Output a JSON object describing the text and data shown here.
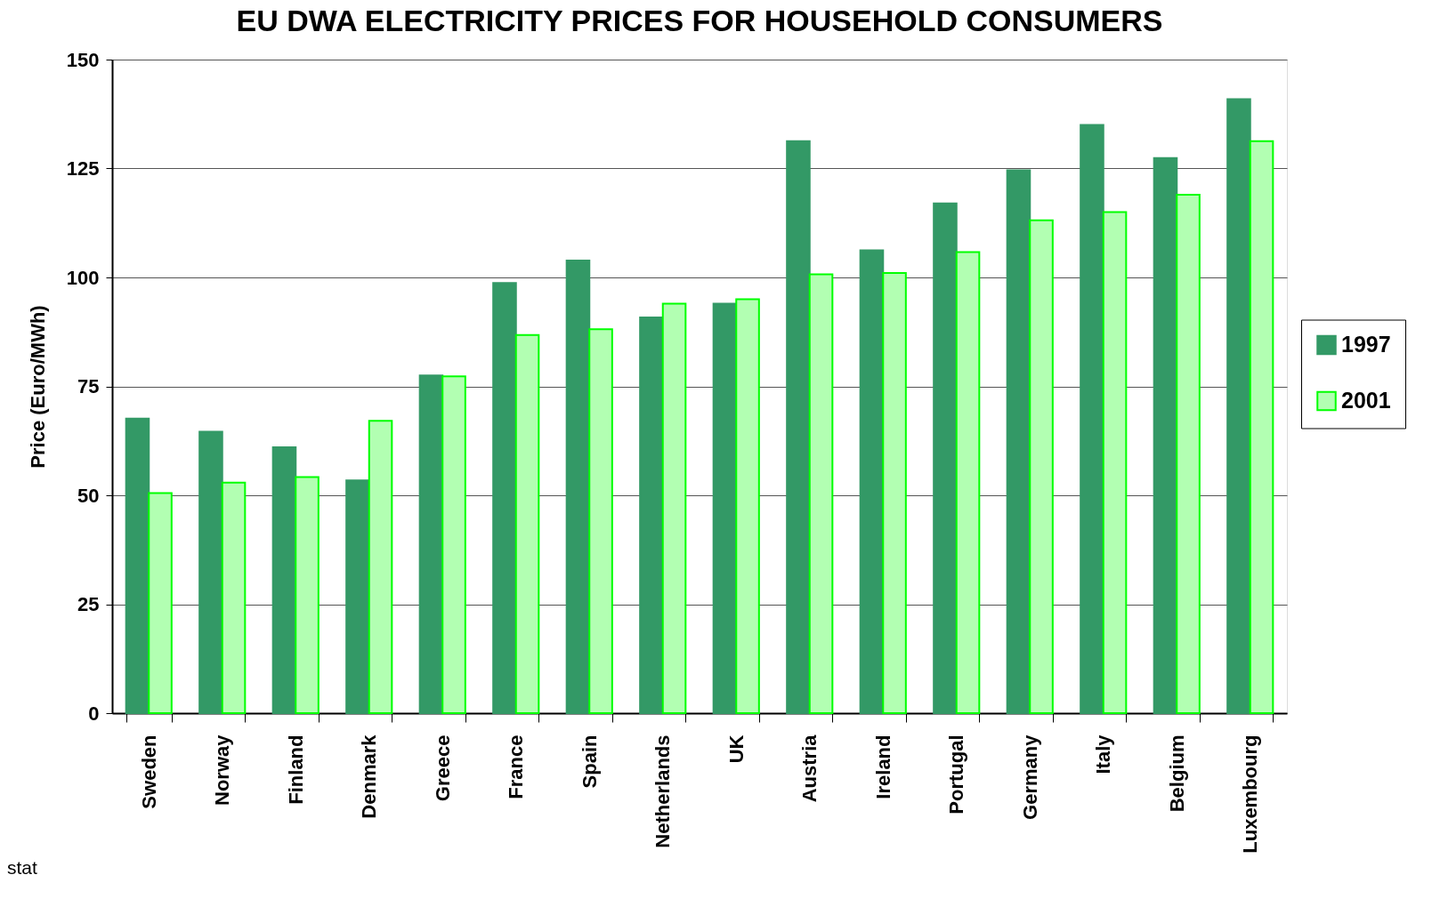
{
  "chart_data": {
    "type": "bar",
    "title": "EU DWA ELECTRICITY PRICES FOR HOUSEHOLD CONSUMERS",
    "ylabel": "Price (Euro/MWh)",
    "categories": [
      "Sweden",
      "Norway",
      "Finland",
      "Denmark",
      "Greece",
      "France",
      "Spain",
      "Netherlands",
      "UK",
      "Austria",
      "Ireland",
      "Portugal",
      "Germany",
      "Italy",
      "Belgium",
      "Luxembourg"
    ],
    "series": [
      {
        "name": "1997",
        "color": "#339966",
        "values": [
          67.6,
          64.6,
          61.0,
          53.4,
          77.5,
          98.7,
          103.9,
          90.8,
          94.0,
          131.3,
          106.2,
          117.0,
          124.6,
          135.0,
          127.4,
          140.9
        ]
      },
      {
        "name": "2001",
        "color": "#00ff00",
        "values": [
          50.5,
          52.9,
          54.2,
          67.1,
          77.3,
          86.8,
          88.1,
          94.0,
          95.0,
          100.7,
          101.0,
          105.8,
          113.1,
          115.0,
          119.0,
          131.3
        ]
      }
    ],
    "ylim": [
      0,
      150
    ],
    "yticks": [
      0,
      25,
      50,
      75,
      100,
      125,
      150
    ],
    "grid": "y",
    "legend": "right",
    "annotations": [
      "stat"
    ]
  }
}
